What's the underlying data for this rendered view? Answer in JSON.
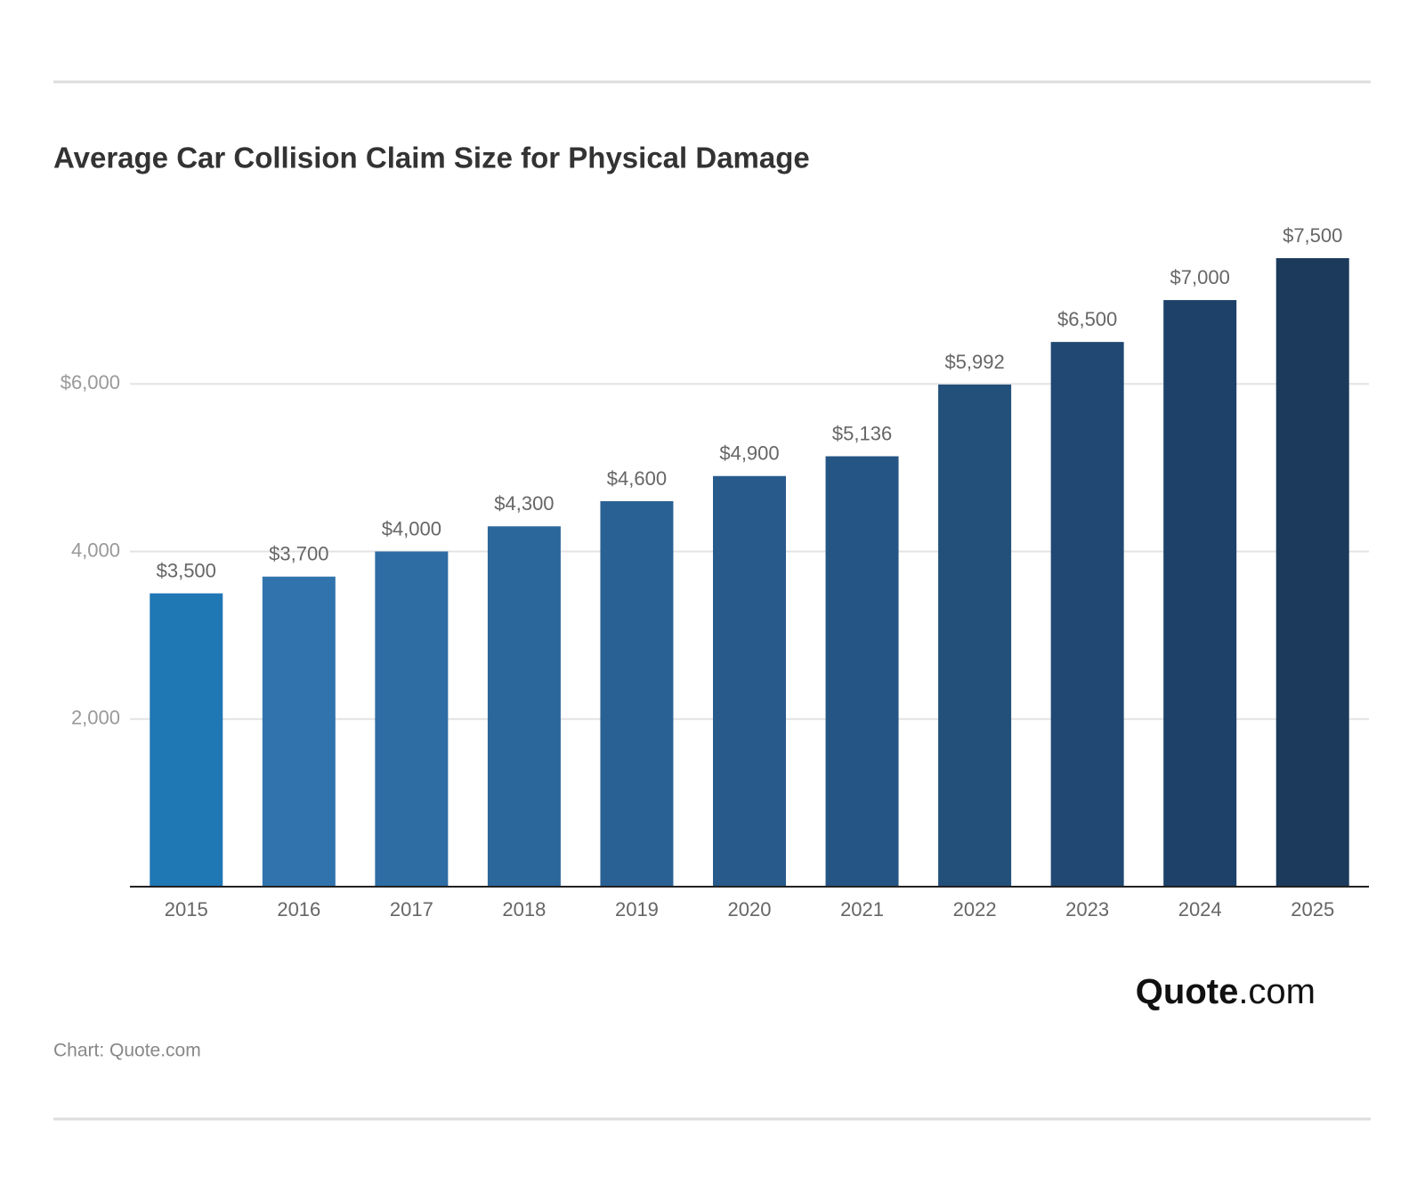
{
  "chart_data": {
    "type": "bar",
    "title": "Average Car Collision Claim Size for Physical Damage",
    "categories": [
      "2015",
      "2016",
      "2017",
      "2018",
      "2019",
      "2020",
      "2021",
      "2022",
      "2023",
      "2024",
      "2025"
    ],
    "values": [
      3500,
      3700,
      4000,
      4300,
      4600,
      4900,
      5136,
      5992,
      6500,
      7000,
      7500
    ],
    "value_labels": [
      "$3,500",
      "$3,700",
      "$4,000",
      "$4,300",
      "$4,600",
      "$4,900",
      "$5,136",
      "$5,992",
      "$6,500",
      "$7,000",
      "$7,500"
    ],
    "colors": [
      "#1f77b4",
      "#3174ad",
      "#2e6ca4",
      "#2c679c",
      "#2a6194",
      "#285b8c",
      "#255584",
      "#234f7b",
      "#204872",
      "#1e4169",
      "#1c3b5c"
    ],
    "ylim": [
      0,
      7500
    ],
    "yticks": [
      {
        "value": 2000,
        "label": "2,000"
      },
      {
        "value": 4000,
        "label": "4,000"
      },
      {
        "value": 6000,
        "label": "$6,000"
      }
    ],
    "grid": true,
    "source": "Chart: Quote.com",
    "logo": {
      "bold": "Quote",
      "rest": ".com"
    }
  }
}
